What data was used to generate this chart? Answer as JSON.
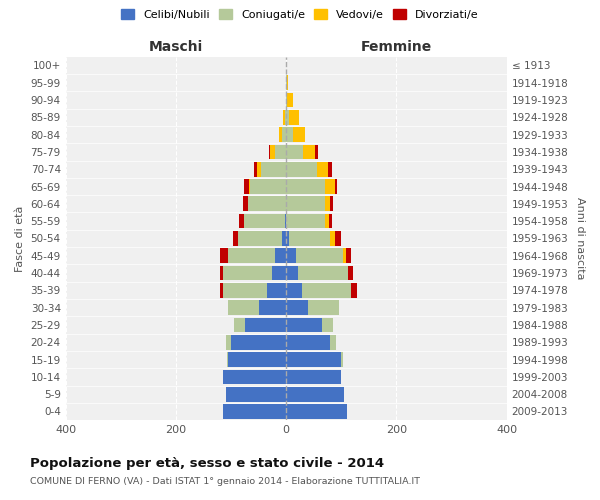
{
  "age_groups": [
    "0-4",
    "5-9",
    "10-14",
    "15-19",
    "20-24",
    "25-29",
    "30-34",
    "35-39",
    "40-44",
    "45-49",
    "50-54",
    "55-59",
    "60-64",
    "65-69",
    "70-74",
    "75-79",
    "80-84",
    "85-89",
    "90-94",
    "95-99",
    "100+"
  ],
  "birth_years": [
    "2009-2013",
    "2004-2008",
    "1999-2003",
    "1994-1998",
    "1989-1993",
    "1984-1988",
    "1979-1983",
    "1974-1978",
    "1969-1973",
    "1964-1968",
    "1959-1963",
    "1954-1958",
    "1949-1953",
    "1944-1948",
    "1939-1943",
    "1934-1938",
    "1929-1933",
    "1924-1928",
    "1919-1923",
    "1914-1918",
    "≤ 1913"
  ],
  "maschi": {
    "celibi": [
      115,
      110,
      115,
      105,
      100,
      75,
      50,
      35,
      25,
      20,
      8,
      2,
      0,
      0,
      0,
      0,
      0,
      0,
      0,
      0,
      0
    ],
    "coniugati": [
      0,
      0,
      0,
      2,
      10,
      20,
      55,
      80,
      90,
      85,
      80,
      75,
      70,
      65,
      45,
      20,
      8,
      3,
      1,
      0,
      0
    ],
    "vedovi": [
      0,
      0,
      0,
      0,
      0,
      0,
      0,
      0,
      0,
      0,
      0,
      0,
      0,
      3,
      8,
      10,
      5,
      2,
      0,
      0,
      0
    ],
    "divorziati": [
      0,
      0,
      0,
      0,
      0,
      0,
      0,
      5,
      5,
      15,
      8,
      8,
      8,
      8,
      5,
      2,
      0,
      0,
      0,
      0,
      0
    ]
  },
  "femmine": {
    "nubili": [
      110,
      105,
      100,
      100,
      80,
      65,
      40,
      28,
      22,
      18,
      5,
      0,
      0,
      0,
      0,
      0,
      0,
      0,
      0,
      0,
      0
    ],
    "coniugate": [
      0,
      0,
      0,
      3,
      10,
      20,
      55,
      90,
      90,
      85,
      75,
      70,
      70,
      70,
      55,
      30,
      12,
      5,
      2,
      1,
      0
    ],
    "vedove": [
      0,
      0,
      0,
      0,
      0,
      0,
      0,
      0,
      0,
      5,
      8,
      8,
      10,
      18,
      20,
      22,
      22,
      18,
      10,
      2,
      0
    ],
    "divorziate": [
      0,
      0,
      0,
      0,
      0,
      0,
      0,
      10,
      10,
      10,
      12,
      5,
      5,
      5,
      8,
      5,
      0,
      0,
      0,
      0,
      0
    ]
  },
  "colors": {
    "celibi_nubili": "#4472c4",
    "coniugati": "#b5c99a",
    "vedovi": "#ffc000",
    "divorziati": "#c00000"
  },
  "title": "Popolazione per età, sesso e stato civile - 2014",
  "subtitle": "COMUNE DI FERNO (VA) - Dati ISTAT 1° gennaio 2014 - Elaborazione TUTTITALIA.IT",
  "xlabel_left": "Maschi",
  "xlabel_right": "Femmine",
  "ylabel_left": "Fasce di età",
  "ylabel_right": "Anni di nascita",
  "xlim": 400,
  "legend_labels": [
    "Celibi/Nubili",
    "Coniugati/e",
    "Vedovi/e",
    "Divorziati/e"
  ],
  "bg_color": "#ffffff",
  "plot_bg": "#f0f0f0",
  "grid_color": "#cccccc"
}
